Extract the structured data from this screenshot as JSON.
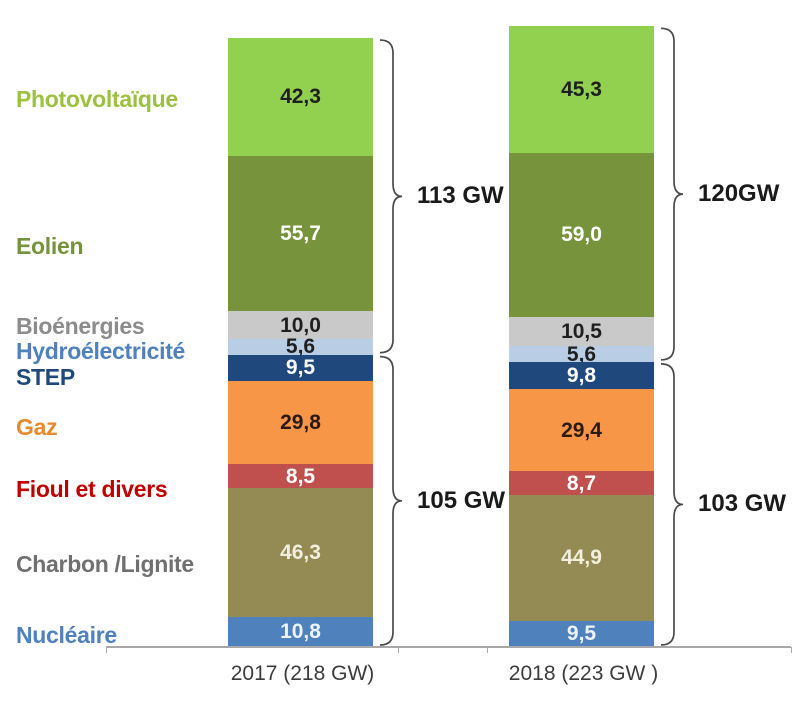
{
  "chart_data": {
    "type": "bar",
    "stacked": true,
    "unit": "GW",
    "title": "",
    "legend_position": "left",
    "grid": false,
    "categories": [
      "2017 (218 GW)",
      "2018 (223 GW )"
    ],
    "category_totals": [
      218,
      223
    ],
    "series": [
      {
        "name": "Photovoltaïque",
        "color": "#92D050",
        "label_color": "#9CC13F",
        "value_color": "#1f1f1f",
        "values": [
          42.3,
          45.3
        ],
        "display": [
          "42,3",
          "45,3"
        ]
      },
      {
        "name": "Eolien",
        "color": "#77933C",
        "label_color": "#76923C",
        "value_color": "#ffffff",
        "values": [
          55.7,
          59.0
        ],
        "display": [
          "55,7",
          "59,0"
        ]
      },
      {
        "name": "Bioénergies",
        "color": "#C9C9C9",
        "label_color": "#8C8C8C",
        "value_color": "#1f1f1f",
        "values": [
          10.0,
          10.5
        ],
        "display": [
          "10,0",
          "10,5"
        ]
      },
      {
        "name": "Hydroélectricité",
        "color": "#B9CDE5",
        "label_color": "#4E81BD",
        "value_color": "#1f1f1f",
        "values": [
          5.6,
          5.6
        ],
        "display": [
          "5,6",
          "5,6"
        ]
      },
      {
        "name": "STEP",
        "color": "#1F497D",
        "label_color": "#1F497D",
        "value_color": "#ffffff",
        "values": [
          9.5,
          9.8
        ],
        "display": [
          "9,5",
          "9,8"
        ]
      },
      {
        "name": "Gaz",
        "color": "#F79646",
        "label_color": "#E8892C",
        "value_color": "#2b1a12",
        "values": [
          29.8,
          29.4
        ],
        "display": [
          "29,8",
          "29,4"
        ]
      },
      {
        "name": "Fioul et divers",
        "color": "#C0504D",
        "label_color": "#C00000",
        "value_color": "#ffffff",
        "values": [
          8.5,
          8.7
        ],
        "display": [
          "8,5",
          "8,7"
        ]
      },
      {
        "name": "Charbon /Lignite",
        "color": "#948A54",
        "label_color": "#707070",
        "value_color": "#F2EFDE",
        "values": [
          46.3,
          44.9
        ],
        "display": [
          "46,3",
          "44,9"
        ]
      },
      {
        "name": "Nucléaire",
        "color": "#4F81BD",
        "label_color": "#4E81BD",
        "value_color": "#EDF3FA",
        "values": [
          10.8,
          9.5
        ],
        "display": [
          "10,8",
          "9,5"
        ]
      }
    ],
    "brackets": [
      {
        "category": 0,
        "label": "113 GW",
        "series_from": 0,
        "series_to": 3
      },
      {
        "category": 0,
        "label": "105 GW",
        "series_from": 4,
        "series_to": 8
      },
      {
        "category": 1,
        "label": "120GW",
        "series_from": 0,
        "series_to": 3
      },
      {
        "category": 1,
        "label": "103 GW",
        "series_from": 4,
        "series_to": 8
      }
    ]
  }
}
